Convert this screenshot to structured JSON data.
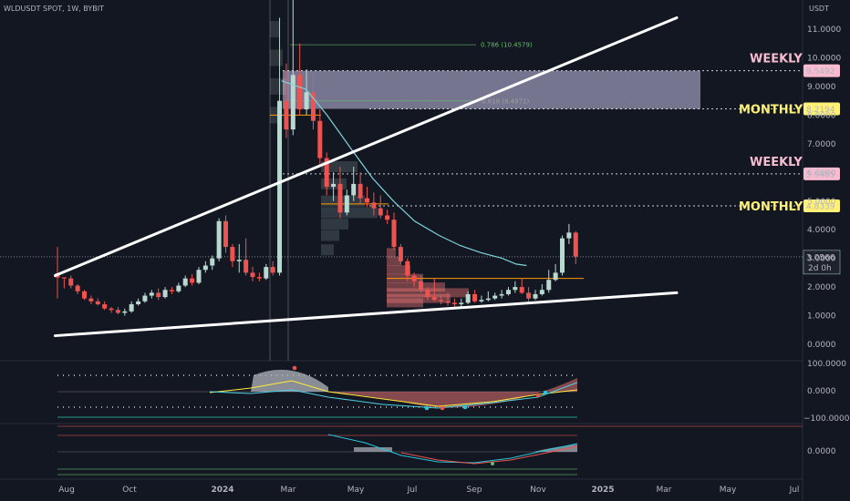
{
  "header": {
    "symbol": "WLDUSDT SPOT, 1W, BYBIT",
    "currency": "USDT"
  },
  "colors": {
    "bg": "#131722",
    "up": "#b9d8d0",
    "down": "#ef5350",
    "ma": "#7fd3db",
    "trend": "#ffffff",
    "weekly": "#f8bbd0",
    "monthly": "#fff176",
    "zone": "#c9c3ea"
  },
  "price_axis": {
    "ticks": [
      "11.0000",
      "10.0000",
      "9.0000",
      "8.0000",
      "7.0000",
      "6.0000",
      "5.0000",
      "4.0000",
      "3.0000",
      "2.0000",
      "1.0000",
      "0.0000"
    ],
    "tick_values": [
      11,
      10,
      9,
      8,
      7,
      6,
      5,
      4,
      3,
      2,
      1,
      0
    ]
  },
  "time_axis": {
    "labels": [
      "Aug",
      "Oct",
      "2024",
      "Mar",
      "May",
      "Jul",
      "Sep",
      "Nov",
      "2025",
      "Mar",
      "May",
      "Jul"
    ]
  },
  "levels": [
    {
      "label": "WEEKLY",
      "price": 9.5492,
      "price_label": "9.5492",
      "kind": "weekly"
    },
    {
      "label": "MONTHLY",
      "price": 8.2194,
      "price_label": "8.2194",
      "kind": "monthly"
    },
    {
      "label": "WEEKLY",
      "price": 5.9485,
      "price_label": "5.9485",
      "kind": "weekly"
    },
    {
      "label": "MONTHLY",
      "price": 4.8339,
      "price_label": "4.8339",
      "kind": "monthly"
    }
  ],
  "current_price": {
    "value": 3.0566,
    "label": "3.0566",
    "countdown": "2d 0h"
  },
  "fib_labels": [
    {
      "text": "0.786 (10.4579)",
      "price": 10.4579
    },
    {
      "text": "0.618 (8.4971)",
      "price": 8.4971
    }
  ],
  "osc1_axis": [
    "100.0000",
    "0.0000",
    "−100.0000"
  ],
  "osc2_axis": [
    "0.0000"
  ],
  "chart_data": {
    "type": "candlestick",
    "title": "WLDUSDT SPOT, 1W, BYBIT",
    "y_unit": "USDT",
    "ylim": [
      -0.5,
      12
    ],
    "grid": false,
    "candles": [
      [
        2.33,
        2.48,
        3.4,
        1.6
      ],
      [
        2.3,
        2.34,
        2.3,
        1.95
      ],
      [
        2.05,
        2.3,
        2.4,
        1.95
      ],
      [
        1.85,
        2.05,
        2.1,
        1.75
      ],
      [
        1.6,
        1.85,
        1.9,
        1.55
      ],
      [
        1.5,
        1.6,
        1.7,
        1.4
      ],
      [
        1.4,
        1.5,
        1.6,
        1.35
      ],
      [
        1.25,
        1.4,
        1.5,
        1.2
      ],
      [
        1.2,
        1.25,
        1.3,
        1.1
      ],
      [
        1.1,
        1.2,
        1.3,
        1.05
      ],
      [
        1.15,
        1.1,
        1.25,
        1.0
      ],
      [
        1.4,
        1.15,
        1.5,
        1.1
      ],
      [
        1.5,
        1.4,
        1.6,
        1.35
      ],
      [
        1.7,
        1.5,
        1.8,
        1.45
      ],
      [
        1.8,
        1.7,
        1.9,
        1.6
      ],
      [
        1.65,
        1.8,
        1.95,
        1.55
      ],
      [
        1.9,
        1.65,
        2.0,
        1.6
      ],
      [
        1.85,
        1.9,
        2.0,
        1.75
      ],
      [
        2.05,
        1.85,
        2.15,
        1.8
      ],
      [
        2.3,
        2.05,
        2.4,
        2.0
      ],
      [
        2.15,
        2.3,
        2.45,
        2.05
      ],
      [
        2.6,
        2.15,
        2.7,
        2.1
      ],
      [
        2.75,
        2.6,
        2.9,
        2.5
      ],
      [
        3.0,
        2.75,
        3.1,
        2.6
      ],
      [
        4.3,
        3.0,
        4.4,
        2.9
      ],
      [
        3.4,
        4.3,
        4.5,
        3.2
      ],
      [
        2.9,
        3.4,
        3.5,
        2.7
      ],
      [
        2.95,
        2.9,
        3.5,
        2.5
      ],
      [
        2.5,
        2.95,
        3.7,
        2.4
      ],
      [
        2.35,
        2.5,
        2.7,
        2.2
      ],
      [
        2.3,
        2.35,
        2.5,
        2.2
      ],
      [
        2.7,
        2.3,
        2.8,
        2.25
      ],
      [
        2.5,
        2.7,
        2.9,
        2.4
      ],
      [
        8.5,
        2.5,
        11.4,
        2.4
      ],
      [
        7.5,
        8.5,
        9.8,
        7.2
      ],
      [
        9.4,
        7.5,
        12.4,
        7.3
      ],
      [
        8.2,
        9.4,
        10.5,
        8.0
      ],
      [
        8.8,
        8.2,
        9.6,
        8.0
      ],
      [
        7.8,
        8.8,
        9.5,
        7.5
      ],
      [
        6.5,
        7.8,
        8.2,
        6.2
      ],
      [
        5.5,
        6.5,
        6.7,
        5.2
      ],
      [
        5.6,
        5.5,
        6.0,
        5.0
      ],
      [
        4.6,
        5.6,
        6.2,
        4.4
      ],
      [
        5.2,
        4.6,
        5.4,
        4.5
      ],
      [
        5.6,
        5.2,
        6.2,
        5.0
      ],
      [
        5.1,
        5.6,
        6.0,
        4.9
      ],
      [
        4.95,
        5.1,
        5.5,
        4.8
      ],
      [
        4.75,
        4.95,
        5.3,
        4.5
      ],
      [
        4.5,
        4.75,
        5.2,
        4.4
      ],
      [
        4.35,
        4.5,
        4.7,
        4.2
      ],
      [
        3.4,
        4.35,
        4.6,
        3.3
      ],
      [
        2.9,
        3.4,
        3.5,
        2.8
      ],
      [
        2.4,
        2.9,
        3.0,
        2.2
      ],
      [
        2.2,
        2.4,
        2.5,
        2.0
      ],
      [
        1.9,
        2.2,
        2.4,
        1.8
      ],
      [
        1.65,
        1.9,
        2.0,
        1.55
      ],
      [
        1.55,
        1.65,
        2.3,
        1.5
      ],
      [
        1.5,
        1.55,
        1.7,
        1.4
      ],
      [
        1.45,
        1.5,
        1.8,
        1.35
      ],
      [
        1.4,
        1.45,
        1.6,
        1.3
      ],
      [
        1.45,
        1.4,
        1.6,
        1.3
      ],
      [
        1.75,
        1.45,
        1.85,
        1.4
      ],
      [
        1.5,
        1.75,
        1.9,
        1.45
      ],
      [
        1.55,
        1.5,
        1.7,
        1.45
      ],
      [
        1.6,
        1.55,
        1.85,
        1.5
      ],
      [
        1.7,
        1.6,
        1.8,
        1.55
      ],
      [
        1.75,
        1.7,
        1.9,
        1.6
      ],
      [
        1.9,
        1.75,
        2.0,
        1.7
      ],
      [
        2.0,
        1.9,
        2.2,
        1.8
      ],
      [
        1.8,
        2.0,
        2.3,
        1.75
      ],
      [
        1.6,
        1.8,
        2.0,
        1.5
      ],
      [
        1.75,
        1.6,
        1.9,
        1.55
      ],
      [
        1.9,
        1.75,
        2.1,
        1.7
      ],
      [
        2.25,
        1.9,
        2.6,
        1.8
      ],
      [
        2.5,
        2.25,
        2.8,
        2.2
      ],
      [
        3.7,
        2.5,
        3.8,
        2.4
      ],
      [
        3.9,
        3.7,
        4.2,
        3.5
      ],
      [
        3.06,
        3.9,
        3.95,
        2.8
      ]
    ],
    "moving_average": [
      [
        2024.2,
        9.2
      ],
      [
        2024.27,
        8.9
      ],
      [
        2024.33,
        8.0
      ],
      [
        2024.4,
        6.8
      ],
      [
        2024.46,
        5.8
      ],
      [
        2024.52,
        5.0
      ],
      [
        2024.58,
        4.3
      ],
      [
        2024.65,
        3.8
      ],
      [
        2024.71,
        3.45
      ],
      [
        2024.77,
        3.2
      ],
      [
        2024.83,
        3.0
      ],
      [
        2024.87,
        2.8
      ],
      [
        2024.9,
        2.75
      ]
    ],
    "trendlines": [
      {
        "from": [
          "2023-07-22",
          2.4
        ],
        "to": [
          "2025-05-01",
          11.4
        ]
      },
      {
        "from": [
          "2023-07-22",
          0.3
        ],
        "to": [
          "2025-05-01",
          1.8
        ]
      }
    ],
    "zone": {
      "price_low": 8.2194,
      "price_high": 9.5492
    }
  }
}
